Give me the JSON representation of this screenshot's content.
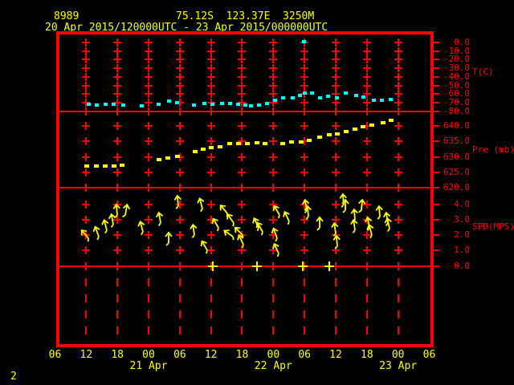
{
  "header": {
    "station_id": "8989",
    "location": "75.12S  123.37E  3250M",
    "time_range": "20 Apr 2015/120000UTC - 23 Apr 2015/000000UTC"
  },
  "footer": {
    "page_number": "2"
  },
  "colors": {
    "background": "#000000",
    "axis": "#ff0000",
    "label_text": "#ffff00",
    "temperature_series": "#00ffff",
    "pressure_series": "#ffff00",
    "wind_series": "#ffff00"
  },
  "x_axis": {
    "tick_labels": [
      "06",
      "12",
      "18",
      "00",
      "06",
      "12",
      "18",
      "00",
      "06",
      "12",
      "18",
      "00",
      "06"
    ],
    "tick_hours": [
      0,
      6,
      12,
      18,
      24,
      30,
      36,
      42,
      48,
      54,
      60,
      66,
      72
    ],
    "grid_hours": [
      6,
      12,
      18,
      24,
      30,
      36,
      42,
      48,
      54,
      60,
      66
    ],
    "date_labels": [
      {
        "label": "21 Apr",
        "hour": 18
      },
      {
        "label": "22 Apr",
        "hour": 42
      },
      {
        "label": "23 Apr",
        "hour": 66
      }
    ],
    "start": "20 Apr 2015 0600UTC",
    "end": "23 Apr 2015 0600UTC"
  },
  "chart_data": [
    {
      "type": "scatter",
      "series": "temperature",
      "ylabel": "T(C)",
      "unit": "C",
      "ylim": [
        -80,
        0
      ],
      "yticks": [
        0,
        -10,
        -20,
        -30,
        -40,
        -50,
        -60,
        -70,
        -80
      ],
      "color": "#00ffff",
      "points": [
        [
          6.4,
          -71.5
        ],
        [
          8.0,
          -72.5
        ],
        [
          9.6,
          -71.5
        ],
        [
          11.2,
          -72.0
        ],
        [
          13.1,
          -73.0
        ],
        [
          16.6,
          -73.5
        ],
        [
          19.9,
          -72.0
        ],
        [
          21.8,
          -68.0
        ],
        [
          23.4,
          -70.0
        ],
        [
          26.7,
          -72.5
        ],
        [
          28.6,
          -71.0
        ],
        [
          30.2,
          -72.0
        ],
        [
          32.0,
          -70.5
        ],
        [
          33.6,
          -71.0
        ],
        [
          35.2,
          -72.0
        ],
        [
          36.6,
          -72.5
        ],
        [
          37.6,
          -74.0
        ],
        [
          39.2,
          -72.5
        ],
        [
          40.7,
          -71.0
        ],
        [
          42.3,
          -67.0
        ],
        [
          43.8,
          -64.5
        ],
        [
          45.7,
          -64.5
        ],
        [
          47.0,
          -61.5
        ],
        [
          47.8,
          1.0
        ],
        [
          47.9,
          -59.0
        ],
        [
          49.3,
          -58.5
        ],
        [
          50.9,
          -64.5
        ],
        [
          52.5,
          -62.5
        ],
        [
          54.2,
          -64.5
        ],
        [
          55.9,
          -58.5
        ],
        [
          57.8,
          -61.5
        ],
        [
          59.3,
          -63.5
        ],
        [
          61.3,
          -67.0
        ],
        [
          62.8,
          -67.0
        ],
        [
          64.5,
          -66.5
        ]
      ]
    },
    {
      "type": "scatter",
      "series": "pressure",
      "ylabel": "Pre (mb)",
      "unit": "mb",
      "ylim": [
        620,
        645
      ],
      "yticks": [
        640,
        635,
        630,
        625,
        620
      ],
      "color": "#ffff00",
      "points": [
        [
          6.1,
          627.1
        ],
        [
          8.0,
          626.9
        ],
        [
          9.7,
          627.1
        ],
        [
          11.4,
          627.1
        ],
        [
          12.9,
          627.4
        ],
        [
          20.0,
          629.1
        ],
        [
          21.7,
          629.7
        ],
        [
          23.6,
          630.1
        ],
        [
          27.0,
          631.8
        ],
        [
          28.5,
          632.5
        ],
        [
          30.1,
          632.9
        ],
        [
          31.7,
          633.2
        ],
        [
          33.6,
          634.2
        ],
        [
          35.3,
          634.3
        ],
        [
          37.0,
          634.2
        ],
        [
          38.9,
          634.5
        ],
        [
          40.4,
          634.4
        ],
        [
          43.8,
          634.3
        ],
        [
          45.5,
          634.8
        ],
        [
          47.4,
          634.7
        ],
        [
          48.9,
          635.3
        ],
        [
          50.9,
          636.4
        ],
        [
          52.8,
          637.1
        ],
        [
          54.3,
          637.5
        ],
        [
          56.0,
          638.2
        ],
        [
          57.7,
          638.9
        ],
        [
          59.2,
          639.7
        ],
        [
          60.9,
          640.2
        ],
        [
          63.1,
          641.0
        ],
        [
          64.7,
          641.8
        ]
      ]
    },
    {
      "type": "wind",
      "series": "wind-speed",
      "ylabel": "SPD(MPS)",
      "unit": "MPS",
      "ylim": [
        0,
        5
      ],
      "yticks": [
        4,
        3,
        2,
        1,
        0
      ],
      "color": "#ffff00",
      "arrows": [
        [
          6.4,
          1.8,
          -40
        ],
        [
          8.4,
          1.9,
          -20
        ],
        [
          10.0,
          2.3,
          -15
        ],
        [
          11.2,
          2.7,
          -10
        ],
        [
          12.0,
          3.3,
          -5
        ],
        [
          13.5,
          3.3,
          10
        ],
        [
          16.9,
          2.2,
          -15
        ],
        [
          20.3,
          2.8,
          -10
        ],
        [
          21.9,
          1.5,
          0
        ],
        [
          23.7,
          3.9,
          -5
        ],
        [
          26.8,
          2.0,
          -8
        ],
        [
          28.4,
          3.7,
          -15
        ],
        [
          29.3,
          1.0,
          -30
        ],
        [
          31.4,
          2.5,
          -30
        ],
        [
          33.1,
          3.4,
          -40
        ],
        [
          34.4,
          2.8,
          -35
        ],
        [
          34.2,
          1.9,
          -55
        ],
        [
          36.1,
          2.0,
          -45
        ],
        [
          36.2,
          1.4,
          -25
        ],
        [
          39.2,
          2.5,
          -25
        ],
        [
          39.9,
          2.2,
          -30
        ],
        [
          42.7,
          1.8,
          -20
        ],
        [
          43.0,
          0.8,
          -25
        ],
        [
          43.2,
          3.3,
          -30
        ],
        [
          45.0,
          2.9,
          -25
        ],
        [
          48.4,
          3.6,
          -10
        ],
        [
          48.7,
          3.2,
          -5
        ],
        [
          50.9,
          2.5,
          0
        ],
        [
          54.0,
          2.1,
          -8
        ],
        [
          54.3,
          1.3,
          -5
        ],
        [
          55.5,
          4.0,
          -5
        ],
        [
          55.9,
          3.6,
          0
        ],
        [
          57.7,
          3.0,
          -5
        ],
        [
          57.7,
          2.3,
          -8
        ],
        [
          59.0,
          3.6,
          5
        ],
        [
          60.5,
          2.5,
          -10
        ],
        [
          61.0,
          2.0,
          -15
        ],
        [
          62.5,
          3.2,
          -5
        ],
        [
          64.0,
          2.8,
          -10
        ],
        [
          64.4,
          2.4,
          -12
        ]
      ],
      "calm_hours": [
        30.4,
        38.9,
        47.7,
        52.8
      ]
    }
  ]
}
